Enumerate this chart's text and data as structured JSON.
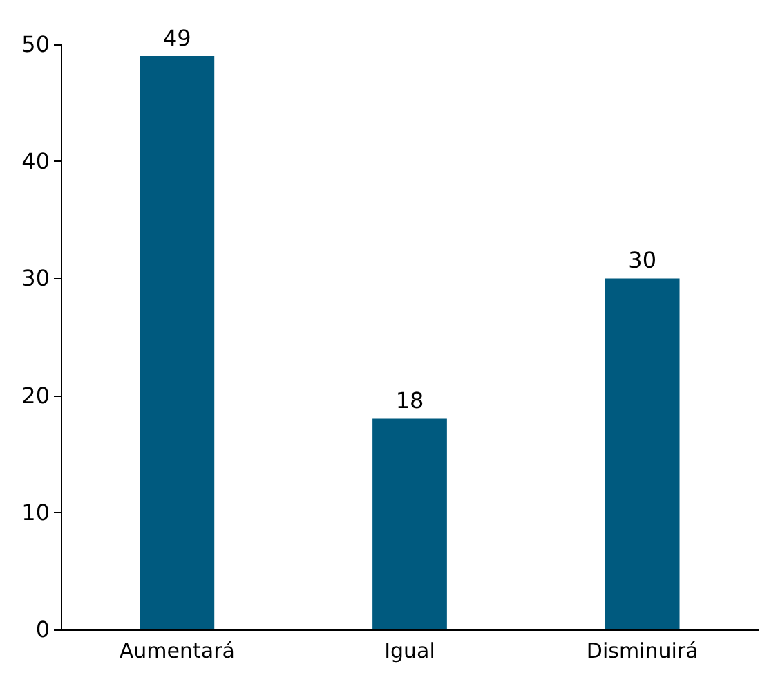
{
  "chart_data": {
    "type": "bar",
    "categories": [
      "Aumentará",
      "Igual",
      "Disminuirá"
    ],
    "values": [
      49,
      18,
      30
    ],
    "color": "#005a7f",
    "ylim": [
      0,
      50
    ],
    "yticks": [
      0,
      10,
      20,
      30,
      40,
      50
    ],
    "grid": false,
    "data_labels": true
  }
}
